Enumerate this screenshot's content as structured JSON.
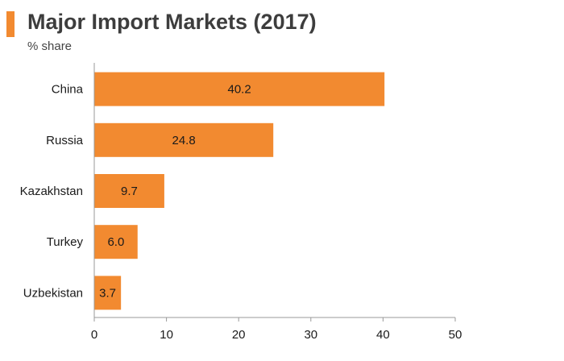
{
  "header": {
    "title": "Major Import Markets (2017)",
    "subtitle": "% share"
  },
  "colors": {
    "accent": "#f28a30",
    "bar": "#f28a30",
    "axis": "#999999"
  },
  "chart_data": {
    "type": "bar",
    "orientation": "horizontal",
    "title": "Major Import Markets (2017)",
    "subtitle": "% share",
    "categories": [
      "China",
      "Russia",
      "Kazakhstan",
      "Turkey",
      "Uzbekistan"
    ],
    "values": [
      40.2,
      24.8,
      9.7,
      6.0,
      3.7
    ],
    "value_labels": [
      "40.2",
      "24.8",
      "9.7",
      "6.0",
      "3.7"
    ],
    "xlim": [
      0,
      50
    ],
    "xticks": [
      0,
      10,
      20,
      30,
      40,
      50
    ],
    "xlabel": "",
    "ylabel": "",
    "grid": false,
    "legend": "none"
  }
}
